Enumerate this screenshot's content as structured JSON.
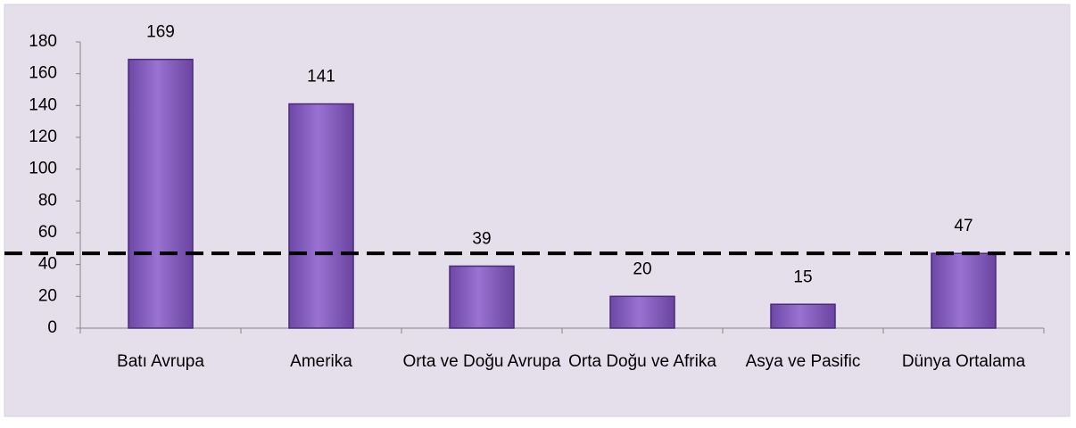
{
  "chart_data": {
    "type": "bar",
    "categories": [
      "Batı Avrupa",
      "Amerika",
      "Orta ve Doğu Avrupa",
      "Orta Doğu ve Afrika",
      "Asya ve Pasific",
      "Dünya Ortalama"
    ],
    "values": [
      169,
      141,
      39,
      20,
      15,
      47
    ],
    "color": "#8b62c4",
    "ylim": [
      0,
      180
    ],
    "yticks": [
      0,
      20,
      40,
      60,
      80,
      100,
      120,
      140,
      160,
      180
    ],
    "reference_line": 47
  }
}
